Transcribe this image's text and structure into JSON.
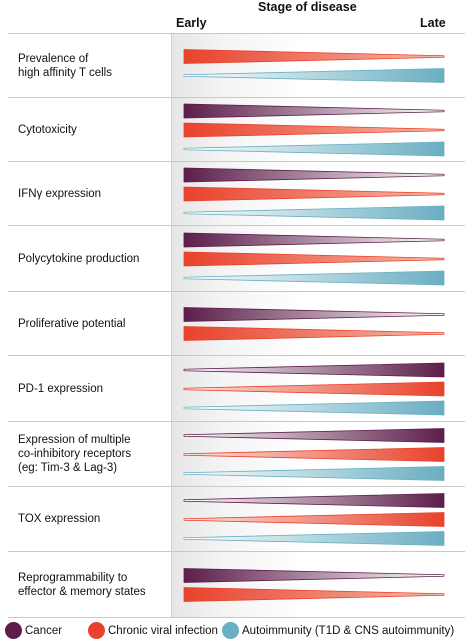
{
  "header": {
    "stage": "Stage of disease",
    "early": "Early",
    "late": "Late"
  },
  "colors": {
    "cancer": "#5c1e4a",
    "chronic_viral": "#e8422c",
    "autoimmunity": "#6aaec2"
  },
  "rows": [
    {
      "label": "Prevalence of\nhigh affinity T cells",
      "bars": [
        {
          "series": "chronic_viral",
          "trend": "decreasing"
        },
        {
          "series": "autoimmunity",
          "trend": "increasing"
        }
      ]
    },
    {
      "label": "Cytotoxicity",
      "bars": [
        {
          "series": "cancer",
          "trend": "decreasing"
        },
        {
          "series": "chronic_viral",
          "trend": "decreasing"
        },
        {
          "series": "autoimmunity",
          "trend": "increasing"
        }
      ]
    },
    {
      "label": "IFNγ expression",
      "bars": [
        {
          "series": "cancer",
          "trend": "decreasing"
        },
        {
          "series": "chronic_viral",
          "trend": "decreasing"
        },
        {
          "series": "autoimmunity",
          "trend": "increasing"
        }
      ]
    },
    {
      "label": "Polycytokine production",
      "bars": [
        {
          "series": "cancer",
          "trend": "decreasing"
        },
        {
          "series": "chronic_viral",
          "trend": "decreasing"
        },
        {
          "series": "autoimmunity",
          "trend": "increasing"
        }
      ]
    },
    {
      "label": "Proliferative potential",
      "bars": [
        {
          "series": "cancer",
          "trend": "decreasing"
        },
        {
          "series": "chronic_viral",
          "trend": "decreasing"
        }
      ]
    },
    {
      "label": "PD-1 expression",
      "bars": [
        {
          "series": "cancer",
          "trend": "increasing"
        },
        {
          "series": "chronic_viral",
          "trend": "increasing"
        },
        {
          "series": "autoimmunity",
          "trend": "increasing"
        }
      ]
    },
    {
      "label": "Expression of multiple\nco-inhibitory receptors\n(eg: Tim-3 & Lag-3)",
      "bars": [
        {
          "series": "cancer",
          "trend": "increasing"
        },
        {
          "series": "chronic_viral",
          "trend": "increasing"
        },
        {
          "series": "autoimmunity",
          "trend": "increasing"
        }
      ]
    },
    {
      "label": "TOX expression",
      "bars": [
        {
          "series": "cancer",
          "trend": "increasing"
        },
        {
          "series": "chronic_viral",
          "trend": "increasing"
        },
        {
          "series": "autoimmunity",
          "trend": "increasing"
        }
      ]
    },
    {
      "label": "Reprogrammability to\neffector & memory states",
      "bars": [
        {
          "series": "cancer",
          "trend": "decreasing"
        },
        {
          "series": "chronic_viral",
          "trend": "decreasing"
        }
      ]
    }
  ],
  "legend": [
    {
      "series": "cancer",
      "label": "Cancer"
    },
    {
      "series": "chronic_viral",
      "label": "Chronic viral infection"
    },
    {
      "series": "autoimmunity",
      "label": "Autoimmunity (T1D & CNS autoimmunity)"
    }
  ]
}
